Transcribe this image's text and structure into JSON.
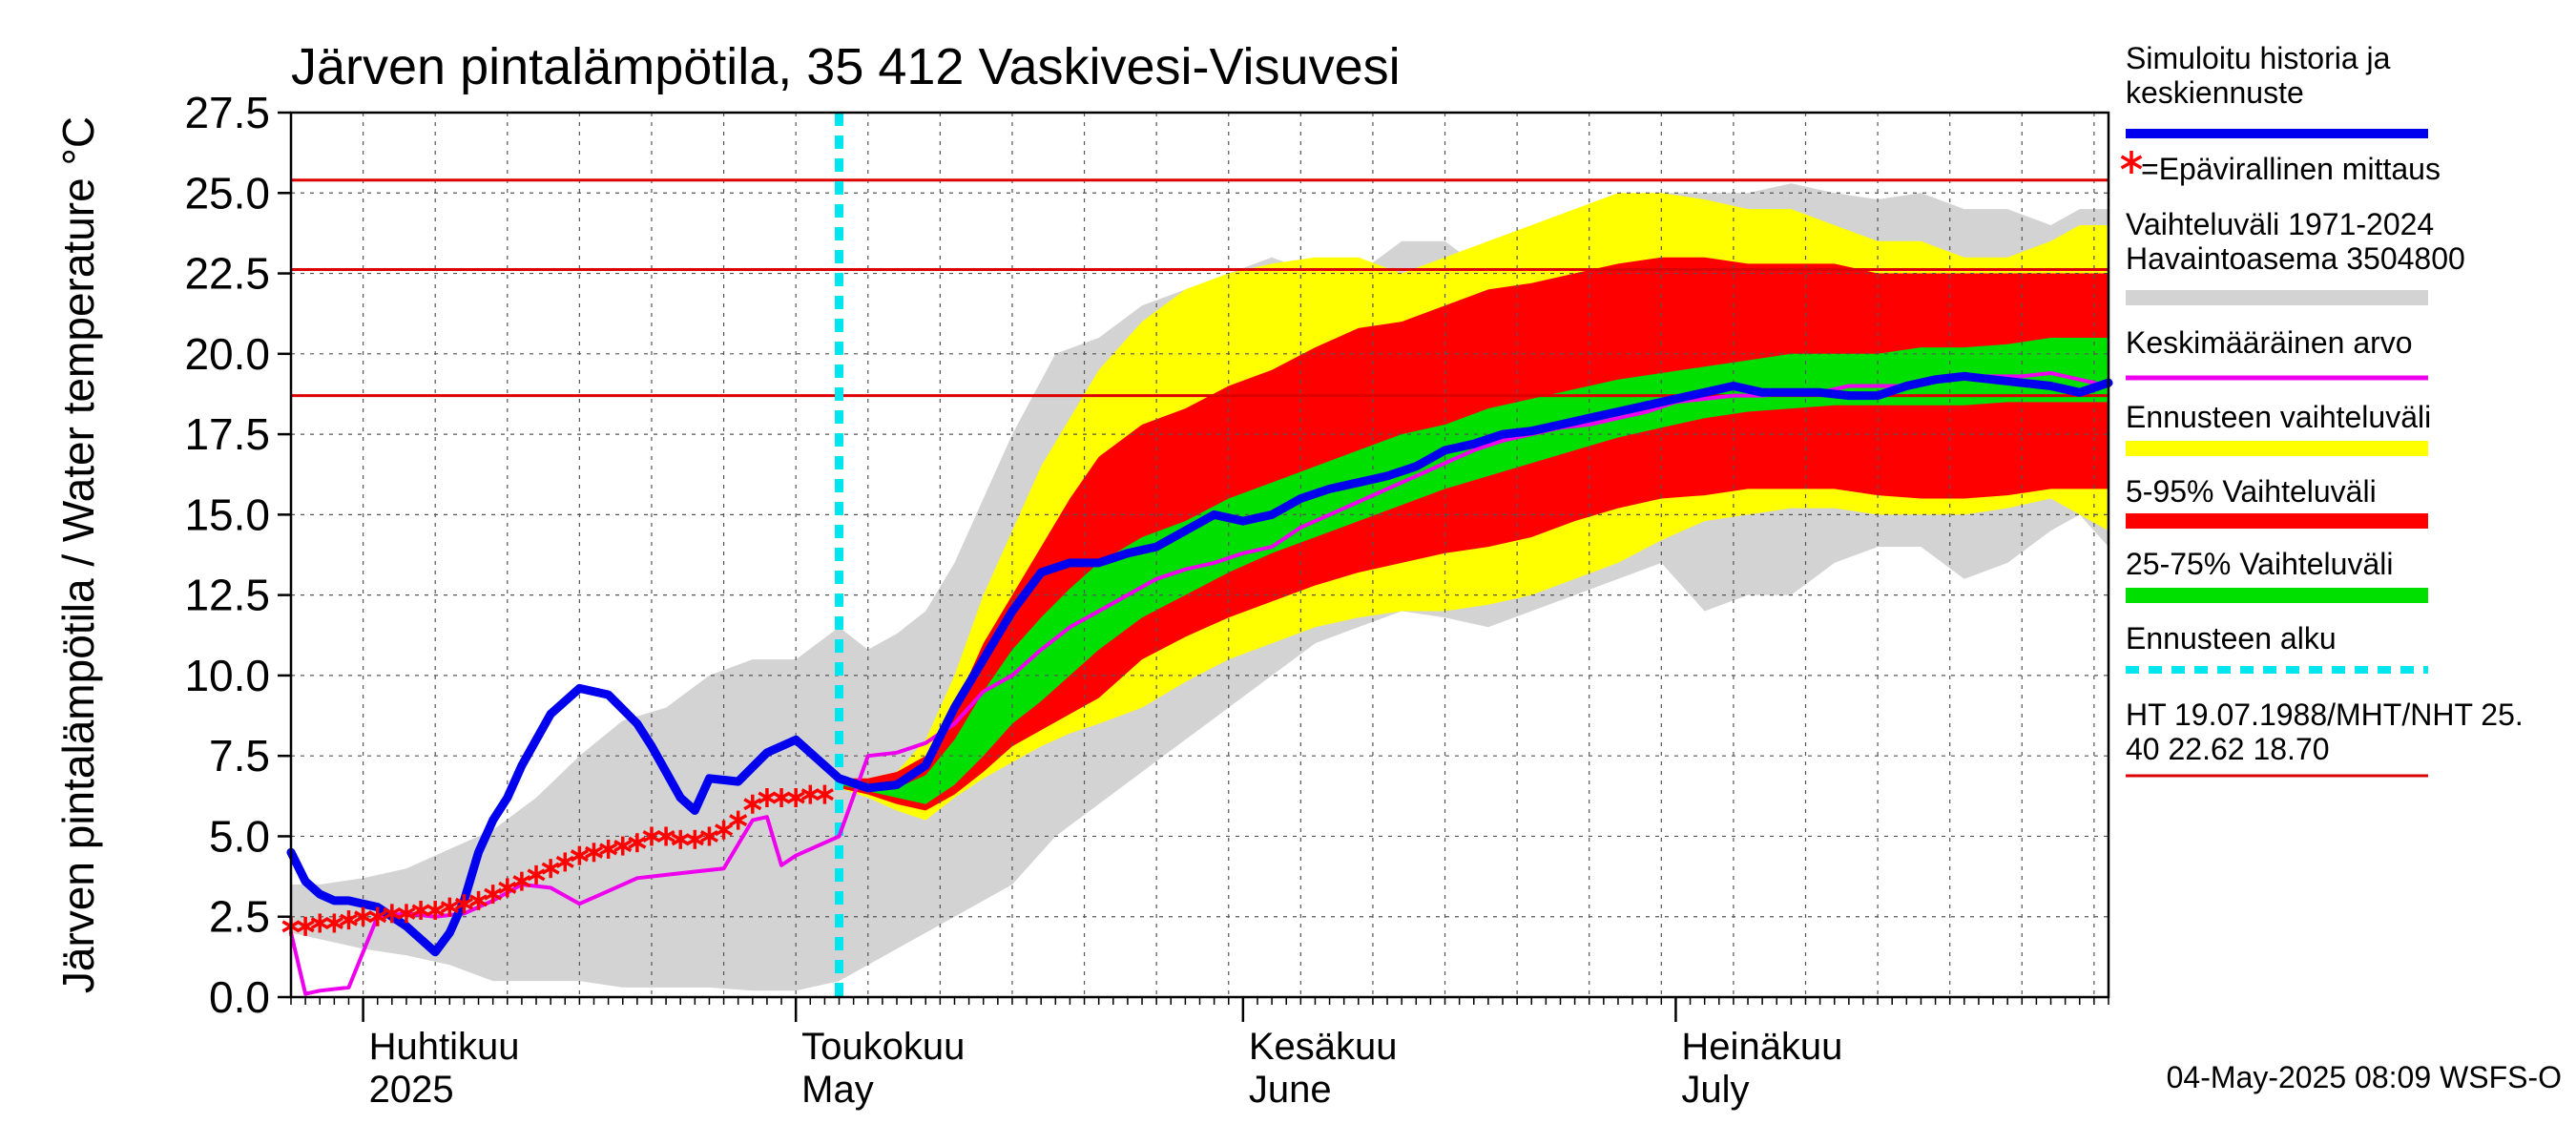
{
  "chart_data": {
    "type": "area",
    "title": "Järven pintalämpötila, 35 412 Vaskivesi-Visuvesi",
    "ylabel": "Järven pintalämpötila / Water temperature °C",
    "ylim": [
      0,
      27.5
    ],
    "yticks": [
      "0.0",
      "2.5",
      "5.0",
      "7.5",
      "10.0",
      "12.5",
      "15.0",
      "17.5",
      "20.0",
      "22.5",
      "25.0",
      "27.5"
    ],
    "x_start": "2025-03-27",
    "x_end": "2025-07-31",
    "forecast_start": "2025-05-04",
    "month_labels": [
      {
        "date": "2025-04-01",
        "line1": "Huhtikuu",
        "line2": "2025"
      },
      {
        "date": "2025-05-01",
        "line1": "Toukokuu",
        "line2": "May"
      },
      {
        "date": "2025-06-01",
        "line1": "Kesäkuu",
        "line2": "June"
      },
      {
        "date": "2025-07-01",
        "line1": "Heinäkuu",
        "line2": "July"
      }
    ],
    "reference_lines": [
      25.4,
      22.62,
      18.7
    ],
    "colors": {
      "history": "#0000ee",
      "measurement": "#ff0000",
      "hist_range": "#d3d3d3",
      "mean": "#ee00ee",
      "forecast_range": "#ffff00",
      "p5_95": "#ff0000",
      "p25_75": "#00e000",
      "forecast_start": "#00e5ee",
      "reference": "#dd0000"
    },
    "series": {
      "hist_range": {
        "x": [
          0,
          2,
          5,
          8,
          11,
          14,
          17,
          20,
          23,
          26,
          29,
          32,
          35,
          38,
          40,
          42,
          44,
          46,
          48,
          50,
          53,
          56,
          59,
          62,
          65,
          68,
          71,
          74,
          77,
          80,
          83,
          86,
          89,
          92,
          95,
          98,
          101,
          104,
          107,
          110,
          113,
          116,
          119,
          122,
          124,
          126
        ],
        "upper": [
          3.5,
          3.5,
          3.7,
          4.0,
          4.6,
          5.2,
          6.2,
          7.5,
          8.6,
          9.0,
          10.0,
          10.5,
          10.5,
          11.5,
          10.8,
          11.3,
          12.0,
          13.5,
          15.5,
          17.5,
          20.0,
          20.5,
          21.5,
          22.0,
          22.5,
          23.0,
          22.5,
          22.5,
          23.5,
          23.5,
          22.5,
          23.0,
          23.5,
          24.0,
          25.0,
          25.0,
          25.0,
          25.3,
          25.0,
          24.8,
          25.0,
          24.5,
          24.5,
          24.0,
          24.5,
          24.5
        ],
        "lower": [
          2.0,
          1.8,
          1.5,
          1.3,
          1.0,
          0.5,
          0.5,
          0.5,
          0.3,
          0.3,
          0.3,
          0.2,
          0.2,
          0.5,
          1.0,
          1.5,
          2.0,
          2.5,
          3.0,
          3.5,
          5.0,
          6.0,
          7.0,
          8.0,
          9.0,
          10.0,
          11.0,
          11.5,
          12.0,
          11.8,
          11.5,
          12.0,
          12.5,
          13.0,
          13.5,
          12.0,
          12.5,
          12.5,
          13.5,
          14.0,
          14.0,
          13.0,
          13.5,
          14.5,
          15.0,
          14.0
        ]
      },
      "forecast_range": {
        "x": [
          38,
          40,
          42,
          44,
          46,
          48,
          50,
          52,
          54,
          56,
          59,
          62,
          65,
          68,
          71,
          74,
          77,
          80,
          83,
          86,
          89,
          92,
          95,
          98,
          101,
          104,
          107,
          110,
          113,
          116,
          119,
          122,
          124,
          126
        ],
        "upper": [
          6.8,
          6.8,
          7.0,
          8.0,
          10.0,
          12.5,
          14.5,
          16.5,
          18.0,
          19.5,
          21.0,
          22.0,
          22.5,
          22.8,
          23.0,
          23.0,
          22.5,
          23.0,
          23.5,
          24.0,
          24.5,
          25.0,
          25.0,
          24.8,
          24.5,
          24.5,
          24.0,
          23.5,
          23.5,
          23.0,
          23.0,
          23.5,
          24.0,
          24.0
        ],
        "lower": [
          6.5,
          6.2,
          5.8,
          5.5,
          6.2,
          6.8,
          7.3,
          7.8,
          8.2,
          8.5,
          9.0,
          9.8,
          10.5,
          11.0,
          11.5,
          11.8,
          12.0,
          12.0,
          12.2,
          12.5,
          13.0,
          13.5,
          14.2,
          14.8,
          15.0,
          15.2,
          15.2,
          15.0,
          15.0,
          15.0,
          15.2,
          15.5,
          15.0,
          14.5
        ]
      },
      "p5_95": {
        "x": [
          38,
          40,
          42,
          44,
          46,
          48,
          50,
          52,
          54,
          56,
          59,
          62,
          65,
          68,
          71,
          74,
          77,
          80,
          83,
          86,
          89,
          92,
          95,
          98,
          101,
          104,
          107,
          110,
          113,
          116,
          119,
          122,
          124,
          126
        ],
        "upper": [
          6.8,
          6.8,
          7.0,
          7.5,
          9.0,
          11.0,
          12.5,
          14.0,
          15.5,
          16.8,
          17.8,
          18.3,
          19.0,
          19.5,
          20.2,
          20.8,
          21.0,
          21.5,
          22.0,
          22.2,
          22.5,
          22.8,
          23.0,
          23.0,
          22.8,
          22.8,
          22.8,
          22.5,
          22.5,
          22.5,
          22.5,
          22.5,
          22.5,
          22.5
        ],
        "lower": [
          6.5,
          6.3,
          6.0,
          5.8,
          6.3,
          7.0,
          7.8,
          8.3,
          8.8,
          9.3,
          10.5,
          11.2,
          11.8,
          12.3,
          12.8,
          13.2,
          13.5,
          13.8,
          14.0,
          14.3,
          14.8,
          15.2,
          15.5,
          15.6,
          15.8,
          15.8,
          15.8,
          15.6,
          15.5,
          15.5,
          15.6,
          15.8,
          15.8,
          15.8
        ]
      },
      "p25_75": {
        "x": [
          38,
          40,
          42,
          44,
          46,
          48,
          50,
          52,
          54,
          56,
          59,
          62,
          65,
          68,
          71,
          74,
          77,
          80,
          83,
          86,
          89,
          92,
          95,
          98,
          101,
          104,
          107,
          110,
          113,
          116,
          119,
          122,
          124,
          126
        ],
        "upper": [
          6.8,
          6.6,
          6.5,
          6.9,
          8.0,
          9.5,
          10.8,
          11.8,
          12.7,
          13.5,
          14.3,
          14.8,
          15.5,
          16.0,
          16.5,
          17.0,
          17.5,
          17.8,
          18.3,
          18.6,
          18.9,
          19.2,
          19.4,
          19.6,
          19.8,
          20.0,
          20.0,
          20.0,
          20.2,
          20.2,
          20.3,
          20.5,
          20.5,
          20.5
        ],
        "lower": [
          6.6,
          6.4,
          6.2,
          6.0,
          6.6,
          7.5,
          8.5,
          9.2,
          10.0,
          10.8,
          11.8,
          12.5,
          13.2,
          13.8,
          14.3,
          14.8,
          15.3,
          15.8,
          16.2,
          16.6,
          17.0,
          17.4,
          17.7,
          18.0,
          18.2,
          18.3,
          18.4,
          18.4,
          18.4,
          18.4,
          18.5,
          18.5,
          18.5,
          18.5
        ]
      },
      "history": {
        "x": [
          0,
          1,
          2,
          3,
          4,
          6,
          8,
          9,
          10,
          11,
          12,
          13,
          14,
          15,
          16,
          18,
          20,
          22,
          24,
          25,
          26,
          27,
          28,
          29,
          31,
          33,
          35,
          36,
          37,
          38,
          40,
          42,
          44,
          46,
          48,
          50,
          52,
          54,
          56,
          58,
          60,
          62,
          64,
          66,
          68,
          70,
          72,
          74,
          76,
          78,
          80,
          82,
          84,
          86,
          88,
          90,
          92,
          94,
          96,
          98,
          100,
          102,
          104,
          106,
          108,
          110,
          112,
          114,
          116,
          118,
          120,
          122,
          124,
          126
        ],
        "y": [
          4.5,
          3.6,
          3.2,
          3.0,
          3.0,
          2.8,
          2.2,
          1.8,
          1.4,
          2.0,
          3.0,
          4.5,
          5.5,
          6.2,
          7.2,
          8.8,
          9.6,
          9.4,
          8.5,
          7.8,
          7.0,
          6.2,
          5.8,
          6.8,
          6.7,
          7.6,
          8.0,
          7.6,
          7.2,
          6.8,
          6.5,
          6.6,
          7.2,
          9.0,
          10.5,
          12.0,
          13.2,
          13.5,
          13.5,
          13.8,
          14.0,
          14.5,
          15.0,
          14.8,
          15.0,
          15.5,
          15.8,
          16.0,
          16.2,
          16.5,
          17.0,
          17.2,
          17.5,
          17.6,
          17.8,
          18.0,
          18.2,
          18.4,
          18.6,
          18.8,
          19.0,
          18.8,
          18.8,
          18.8,
          18.7,
          18.7,
          19.0,
          19.2,
          19.3,
          19.2,
          19.1,
          19.0,
          18.8,
          19.1
        ]
      },
      "mean": {
        "x": [
          0,
          1,
          2,
          4,
          6,
          8,
          10,
          12,
          14,
          16,
          18,
          20,
          22,
          24,
          26,
          28,
          30,
          32,
          33,
          34,
          35,
          36,
          38,
          40,
          42,
          44,
          46,
          48,
          50,
          52,
          54,
          56,
          58,
          60,
          62,
          64,
          66,
          68,
          70,
          72,
          74,
          76,
          78,
          80,
          82,
          84,
          86,
          88,
          90,
          92,
          94,
          96,
          98,
          100,
          102,
          104,
          106,
          108,
          110,
          112,
          114,
          116,
          118,
          120,
          122,
          124,
          126
        ],
        "y": [
          2.0,
          0.1,
          0.2,
          0.3,
          2.5,
          2.6,
          2.5,
          2.6,
          3.0,
          3.5,
          3.4,
          2.9,
          3.3,
          3.7,
          3.8,
          3.9,
          4.0,
          5.5,
          5.6,
          4.1,
          4.4,
          4.6,
          5.0,
          7.5,
          7.6,
          7.9,
          8.5,
          9.5,
          10.0,
          10.8,
          11.5,
          12.0,
          12.5,
          13.0,
          13.3,
          13.5,
          13.8,
          14.0,
          14.6,
          15.0,
          15.4,
          15.8,
          16.2,
          16.6,
          17.0,
          17.3,
          17.5,
          17.7,
          17.8,
          18.0,
          18.2,
          18.5,
          18.6,
          18.7,
          18.7,
          18.8,
          18.8,
          19.0,
          19.0,
          19.0,
          19.2,
          19.3,
          19.3,
          19.3,
          19.4,
          19.2,
          19.0
        ]
      },
      "measurement": {
        "x": [
          0,
          1,
          2,
          3,
          4,
          5,
          6,
          7,
          8,
          9,
          10,
          11,
          12,
          13,
          14,
          15,
          16,
          17,
          18,
          19,
          20,
          21,
          22,
          23,
          24,
          25,
          26,
          27,
          28,
          29,
          30,
          31,
          32,
          33,
          34,
          35,
          36,
          37
        ],
        "y": [
          2.2,
          2.2,
          2.3,
          2.3,
          2.4,
          2.5,
          2.5,
          2.6,
          2.6,
          2.7,
          2.7,
          2.8,
          2.9,
          3.0,
          3.2,
          3.4,
          3.6,
          3.8,
          4.0,
          4.2,
          4.4,
          4.5,
          4.6,
          4.7,
          4.8,
          5.0,
          5.0,
          4.9,
          4.9,
          5.0,
          5.2,
          5.5,
          6.0,
          6.2,
          6.2,
          6.2,
          6.3,
          6.3
        ]
      }
    }
  },
  "legend": [
    {
      "text": "Simuloitu historia ja\nkeskiennuste",
      "type": "history"
    },
    {
      "text": "=Epävirallinen mittaus",
      "type": "measurement"
    },
    {
      "text": "Vaihteluväli 1971-2024\n Havaintoasema 3504800",
      "type": "hist_range"
    },
    {
      "text": "Keskimääräinen arvo",
      "type": "mean"
    },
    {
      "text": "Ennusteen vaihteluväli",
      "type": "forecast_range"
    },
    {
      "text": "5-95% Vaihteluväli",
      "type": "p5_95"
    },
    {
      "text": "25-75% Vaihteluväli",
      "type": "p25_75"
    },
    {
      "text": "Ennusteen alku",
      "type": "forecast_start"
    },
    {
      "text": "HT 19.07.1988/MHT/NHT 25.\n40 22.62 18.70",
      "type": "reference"
    }
  ],
  "footer": "04-May-2025 08:09 WSFS-O"
}
